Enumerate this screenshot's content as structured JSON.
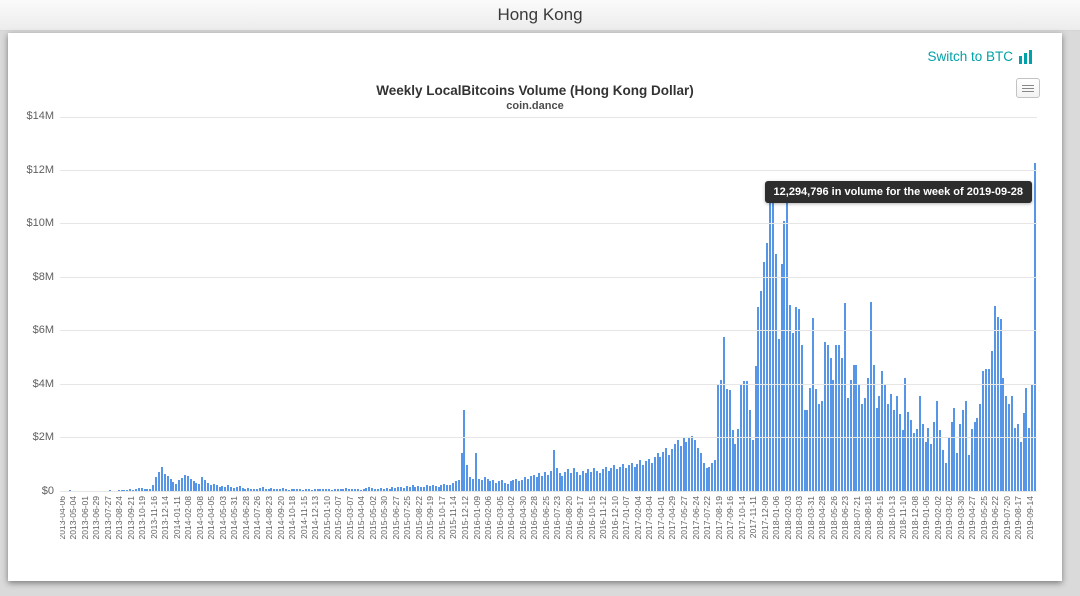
{
  "page": {
    "title": "Hong Kong"
  },
  "toolbar": {
    "switch_label": "Switch to BTC"
  },
  "tooltip": {
    "text": "12,294,796 in volume for the week of 2019-09-28"
  },
  "colors": {
    "bar": "#5795e7",
    "accent_teal": "#00a1a8",
    "tooltip_bg": "#2d2d2d",
    "gridline": "#e6e6e6",
    "axis_label": "#606060"
  },
  "chart_data": {
    "type": "bar",
    "title": "Weekly LocalBitcoins Volume (Hong Kong Dollar)",
    "subtitle": "coin.dance",
    "xlabel": "",
    "ylabel": "",
    "unit": "HKD, millions",
    "ylim": [
      0,
      14
    ],
    "grid": true,
    "legend": false,
    "y_ticks": [
      "$0",
      "$2M",
      "$4M",
      "$6M",
      "$8M",
      "$10M",
      "$12M",
      "$14M"
    ],
    "x_tick_every": 4,
    "x_tick_labels": [
      "2013-04-06",
      "2013-05-04",
      "2013-06-01",
      "2013-06-29",
      "2013-07-27",
      "2013-08-24",
      "2013-09-21",
      "2013-10-19",
      "2013-11-16",
      "2013-12-14",
      "2014-01-11",
      "2014-02-08",
      "2014-03-08",
      "2014-04-05",
      "2014-05-03",
      "2014-05-31",
      "2014-06-28",
      "2014-07-26",
      "2014-08-23",
      "2014-09-20",
      "2014-10-18",
      "2014-11-15",
      "2014-12-13",
      "2015-01-10",
      "2015-02-07",
      "2015-03-07",
      "2015-04-04",
      "2015-05-02",
      "2015-05-30",
      "2015-06-27",
      "2015-07-25",
      "2015-08-22",
      "2015-09-19",
      "2015-10-17",
      "2015-11-14",
      "2015-12-12",
      "2016-01-09",
      "2016-02-06",
      "2016-03-05",
      "2016-04-02",
      "2016-04-30",
      "2016-05-28",
      "2016-06-25",
      "2016-07-23",
      "2016-08-20",
      "2016-09-17",
      "2016-10-15",
      "2016-11-12",
      "2016-12-10",
      "2017-01-07",
      "2017-02-04",
      "2017-03-04",
      "2017-04-01",
      "2017-04-29",
      "2017-05-27",
      "2017-06-24",
      "2017-07-22",
      "2017-08-19",
      "2017-09-16",
      "2017-10-14",
      "2017-11-11",
      "2017-12-09",
      "2018-01-06",
      "2018-02-03",
      "2018-03-03",
      "2018-03-31",
      "2018-04-28",
      "2018-05-26",
      "2018-06-23",
      "2018-07-21",
      "2018-08-18",
      "2018-09-15",
      "2018-10-13",
      "2018-11-10",
      "2018-12-08",
      "2019-01-05",
      "2019-02-02",
      "2019-03-02",
      "2019-03-30",
      "2019-04-27",
      "2019-05-25",
      "2019-06-22",
      "2019-07-20",
      "2019-08-17",
      "2019-09-14"
    ],
    "values": [
      0.02,
      0.03,
      0.02,
      0.07,
      0.03,
      0.02,
      0.03,
      0.02,
      0.04,
      0.03,
      0.02,
      0.03,
      0.05,
      0.04,
      0.03,
      0.05,
      0.04,
      0.06,
      0.05,
      0.04,
      0.07,
      0.06,
      0.08,
      0.07,
      0.12,
      0.09,
      0.11,
      0.15,
      0.14,
      0.12,
      0.1,
      0.12,
      0.26,
      0.55,
      0.74,
      0.92,
      0.67,
      0.59,
      0.48,
      0.37,
      0.3,
      0.45,
      0.52,
      0.65,
      0.6,
      0.5,
      0.42,
      0.35,
      0.3,
      0.55,
      0.45,
      0.35,
      0.28,
      0.3,
      0.25,
      0.2,
      0.22,
      0.18,
      0.25,
      0.2,
      0.15,
      0.18,
      0.22,
      0.15,
      0.12,
      0.15,
      0.1,
      0.13,
      0.12,
      0.15,
      0.18,
      0.12,
      0.1,
      0.14,
      0.12,
      0.1,
      0.12,
      0.15,
      0.1,
      0.08,
      0.12,
      0.1,
      0.13,
      0.1,
      0.08,
      0.1,
      0.12,
      0.09,
      0.11,
      0.1,
      0.12,
      0.1,
      0.12,
      0.1,
      0.08,
      0.11,
      0.13,
      0.1,
      0.12,
      0.15,
      0.12,
      0.1,
      0.13,
      0.11,
      0.09,
      0.12,
      0.15,
      0.18,
      0.15,
      0.12,
      0.1,
      0.14,
      0.12,
      0.16,
      0.13,
      0.18,
      0.15,
      0.2,
      0.17,
      0.15,
      0.22,
      0.18,
      0.25,
      0.2,
      0.22,
      0.18,
      0.2,
      0.25,
      0.22,
      0.28,
      0.24,
      0.2,
      0.26,
      0.3,
      0.25,
      0.28,
      0.35,
      0.4,
      0.45,
      1.45,
      3.05,
      1.0,
      0.55,
      0.5,
      1.45,
      0.5,
      0.45,
      0.55,
      0.5,
      0.4,
      0.45,
      0.35,
      0.4,
      0.45,
      0.35,
      0.3,
      0.4,
      0.45,
      0.5,
      0.4,
      0.45,
      0.55,
      0.5,
      0.6,
      0.65,
      0.55,
      0.7,
      0.6,
      0.75,
      0.65,
      0.8,
      1.55,
      0.9,
      0.7,
      0.6,
      0.75,
      0.85,
      0.7,
      0.9,
      0.75,
      0.65,
      0.8,
      0.7,
      0.85,
      0.75,
      0.9,
      0.8,
      0.7,
      0.85,
      0.95,
      0.8,
      0.9,
      1.0,
      0.85,
      0.95,
      1.05,
      0.9,
      1.0,
      1.1,
      0.95,
      1.05,
      1.2,
      1.0,
      1.15,
      1.25,
      1.1,
      1.3,
      1.45,
      1.3,
      1.5,
      1.65,
      1.4,
      1.6,
      1.8,
      1.95,
      1.7,
      2.0,
      1.85,
      2.05,
      2.1,
      1.95,
      1.65,
      1.45,
      1.07,
      0.9,
      0.95,
      1.07,
      1.2,
      4.05,
      4.2,
      5.8,
      3.85,
      3.8,
      2.3,
      1.8,
      2.35,
      4.05,
      4.15,
      4.15,
      3.05,
      1.95,
      4.7,
      6.9,
      7.5,
      8.6,
      9.3,
      10.85,
      10.8,
      8.9,
      5.7,
      8.5,
      10.1,
      11.55,
      7.0,
      5.95,
      6.9,
      6.85,
      5.5,
      3.05,
      3.05,
      3.9,
      6.5,
      3.85,
      3.3,
      3.4,
      5.6,
      5.5,
      5.0,
      4.2,
      5.5,
      5.5,
      5.0,
      7.05,
      3.5,
      4.2,
      4.75,
      4.75,
      4.0,
      3.3,
      3.5,
      4.25,
      7.1,
      4.75,
      3.15,
      3.6,
      4.5,
      4.0,
      3.3,
      3.65,
      3.05,
      3.6,
      2.9,
      2.3,
      4.25,
      3.0,
      2.7,
      2.2,
      2.35,
      3.6,
      2.55,
      1.85,
      2.4,
      1.8,
      2.6,
      3.4,
      2.3,
      1.55,
      1.1,
      2.05,
      2.6,
      3.15,
      1.45,
      2.55,
      3.05,
      3.4,
      1.4,
      2.35,
      2.6,
      2.75,
      3.3,
      4.5,
      4.6,
      4.6,
      5.25,
      6.95,
      6.55,
      6.45,
      4.25,
      3.6,
      3.3,
      3.6,
      2.4,
      2.55,
      1.85,
      2.95,
      3.9,
      2.4,
      4.0,
      12.294796
    ],
    "highlight": {
      "index": 338,
      "week": "2019-09-28",
      "value_hkd": 12294796,
      "tooltip": "12,294,796 in volume for the week of 2019-09-28"
    }
  }
}
